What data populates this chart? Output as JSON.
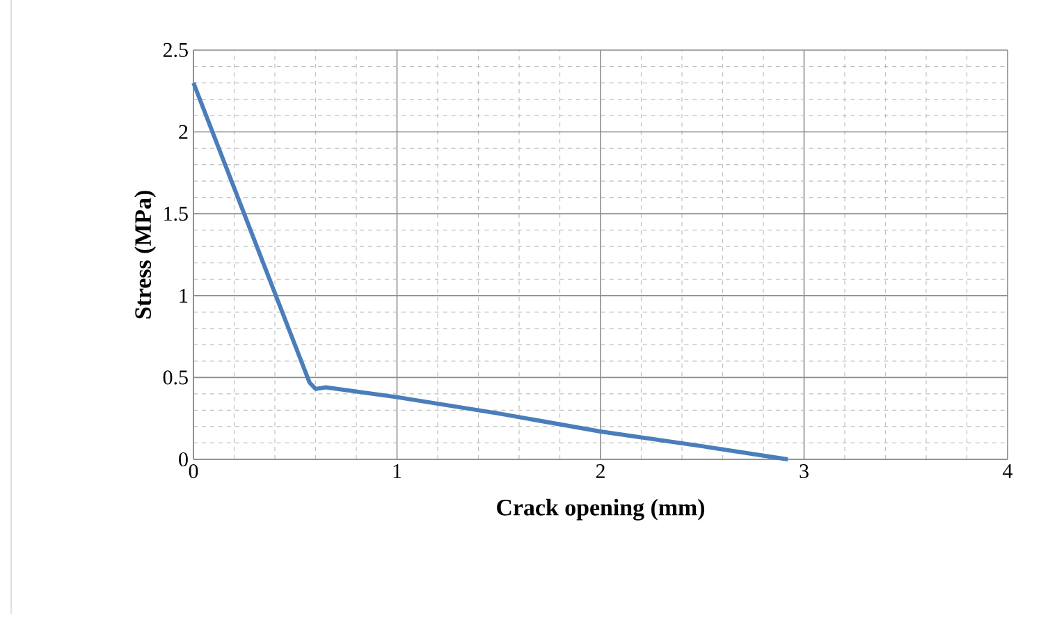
{
  "chart_data": {
    "type": "line",
    "xlabel": "Crack opening (mm)",
    "ylabel": "Stress (MPa)",
    "series": [
      {
        "color": "#4a7ebb",
        "x": [
          0,
          0.57,
          0.6,
          0.65,
          1,
          1.5,
          2,
          2.5,
          2.92
        ],
        "values": [
          2.3,
          0.47,
          0.43,
          0.44,
          0.38,
          0.28,
          0.17,
          0.08,
          0
        ]
      }
    ],
    "xlim": [
      0,
      4
    ],
    "ylim": [
      0,
      2.5
    ],
    "xticks": [
      0,
      1,
      2,
      3,
      4
    ],
    "yticks": [
      0,
      0.5,
      1,
      1.5,
      2,
      2.5
    ],
    "grid": true,
    "marker": "none",
    "line_style": "solid"
  }
}
